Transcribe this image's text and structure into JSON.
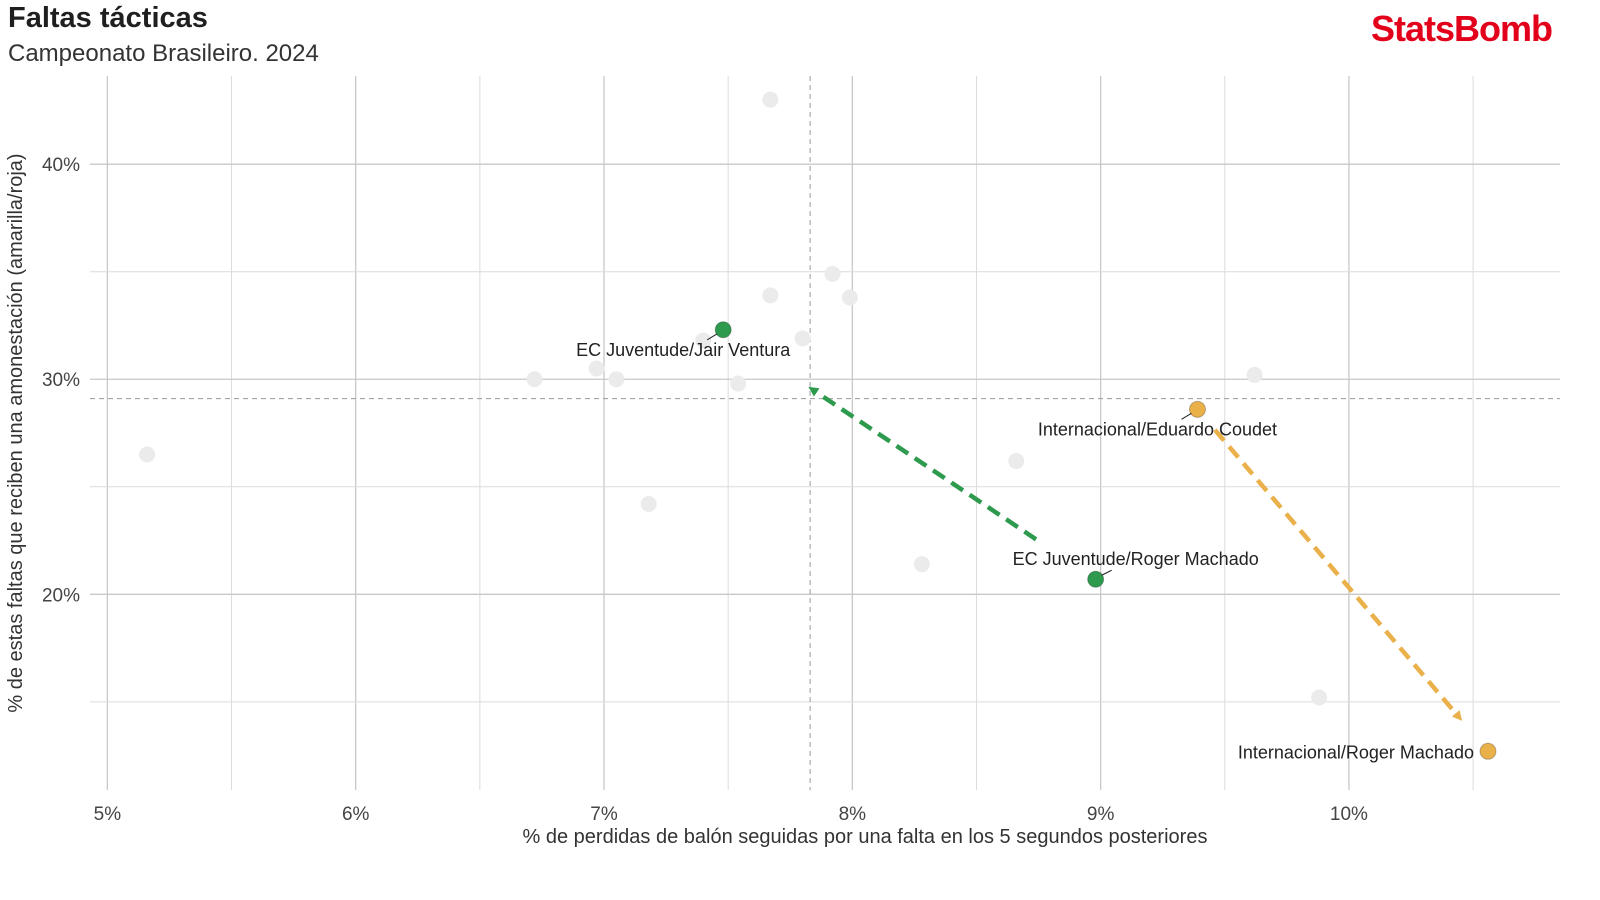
{
  "header": {
    "title": "Faltas tácticas",
    "subtitle": "Campeonato Brasileiro. 2024",
    "brand": "StatsBomb"
  },
  "colors": {
    "green": "#2e9a4e",
    "orange": "#eab04a",
    "grey_point": "#ebebeb",
    "grid": "#cccccc",
    "brand": "#e2001a"
  },
  "chart_data": {
    "type": "scatter",
    "title": "Faltas tácticas",
    "subtitle": "Campeonato Brasileiro. 2024",
    "xlabel": "% de perdidas de balón seguidas por una falta en los 5 segundos posteriores",
    "ylabel": "% de estas faltas que reciben una amonestación (amarilla/roja)",
    "xlim": [
      4.93,
      10.85
    ],
    "ylim": [
      10.9,
      44.1
    ],
    "x_ticks": [
      5,
      6,
      7,
      8,
      9,
      10
    ],
    "x_tick_labels": [
      "5%",
      "6%",
      "7%",
      "8%",
      "9%",
      "10%"
    ],
    "y_ticks": [
      20,
      30,
      40
    ],
    "y_tick_labels": [
      "20%",
      "30%",
      "40%"
    ],
    "grid": true,
    "reference_lines": {
      "x_mean": 7.83,
      "y_mean": 29.1
    },
    "background_points": [
      {
        "x": 5.16,
        "y": 26.5
      },
      {
        "x": 6.72,
        "y": 30.0
      },
      {
        "x": 6.97,
        "y": 30.5
      },
      {
        "x": 7.05,
        "y": 30.0
      },
      {
        "x": 7.18,
        "y": 24.2
      },
      {
        "x": 7.4,
        "y": 31.8
      },
      {
        "x": 7.54,
        "y": 29.8
      },
      {
        "x": 7.67,
        "y": 43.0
      },
      {
        "x": 7.67,
        "y": 33.9
      },
      {
        "x": 7.8,
        "y": 31.9
      },
      {
        "x": 7.92,
        "y": 34.9
      },
      {
        "x": 7.99,
        "y": 33.8
      },
      {
        "x": 8.28,
        "y": 21.4
      },
      {
        "x": 8.66,
        "y": 26.2
      },
      {
        "x": 9.62,
        "y": 30.2
      },
      {
        "x": 9.88,
        "y": 15.2
      }
    ],
    "highlight_series": [
      {
        "color": "green",
        "points": [
          {
            "label": "EC Juventude/Roger Machado",
            "x": 8.98,
            "y": 20.7
          },
          {
            "label": "EC Juventude/Jair Ventura",
            "x": 7.48,
            "y": 32.3
          }
        ]
      },
      {
        "color": "orange",
        "points": [
          {
            "label": "Internacional/Eduardo Coudet",
            "x": 9.39,
            "y": 28.6
          },
          {
            "label": "Internacional/Roger Machado",
            "x": 10.56,
            "y": 12.7
          }
        ]
      }
    ]
  }
}
